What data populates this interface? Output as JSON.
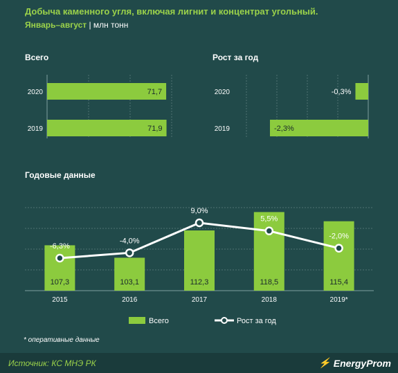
{
  "title": "Добыча каменного угля, включая лигнит и концентрат угольный.",
  "period": "Январь–август",
  "unit": "млн тонн",
  "footnote": "* оперативные данные",
  "source": "Источник: КС МНЭ РК",
  "brand": "EnergyProm",
  "colors": {
    "bar": "#8ccb3e",
    "background": "#214a4a",
    "accent": "#9bd24a",
    "line": "#ffffff"
  },
  "chart_data": [
    {
      "type": "bar",
      "orientation": "horizontal",
      "title": "Всего",
      "categories": [
        "2020",
        "2019"
      ],
      "values": [
        71.7,
        71.9
      ],
      "labels": [
        "71,7",
        "71,9"
      ],
      "xlim": [
        0,
        75
      ]
    },
    {
      "type": "bar",
      "orientation": "horizontal",
      "title": "Рост за год",
      "categories": [
        "2020",
        "2019"
      ],
      "values": [
        -0.3,
        -2.3
      ],
      "labels": [
        "-0,3%",
        "-2,3%"
      ],
      "xlim": [
        -2.4,
        0
      ]
    },
    {
      "type": "bar+line",
      "title": "Годовые данные",
      "categories": [
        "2015",
        "2016",
        "2017",
        "2018",
        "2019*"
      ],
      "series": [
        {
          "name": "Всего",
          "type": "bar",
          "values": [
            107.3,
            103.1,
            112.3,
            118.5,
            115.4
          ],
          "labels": [
            "107,3",
            "103,1",
            "112,3",
            "118,5",
            "115,4"
          ]
        },
        {
          "name": "Рост за год",
          "type": "line",
          "values": [
            -6.3,
            -4.0,
            9.0,
            5.5,
            -2.0
          ],
          "labels": [
            "-6,3%",
            "-4,0%",
            "9,0%",
            "5,5%",
            "-2,0%"
          ]
        }
      ],
      "legend": "bottom"
    }
  ]
}
